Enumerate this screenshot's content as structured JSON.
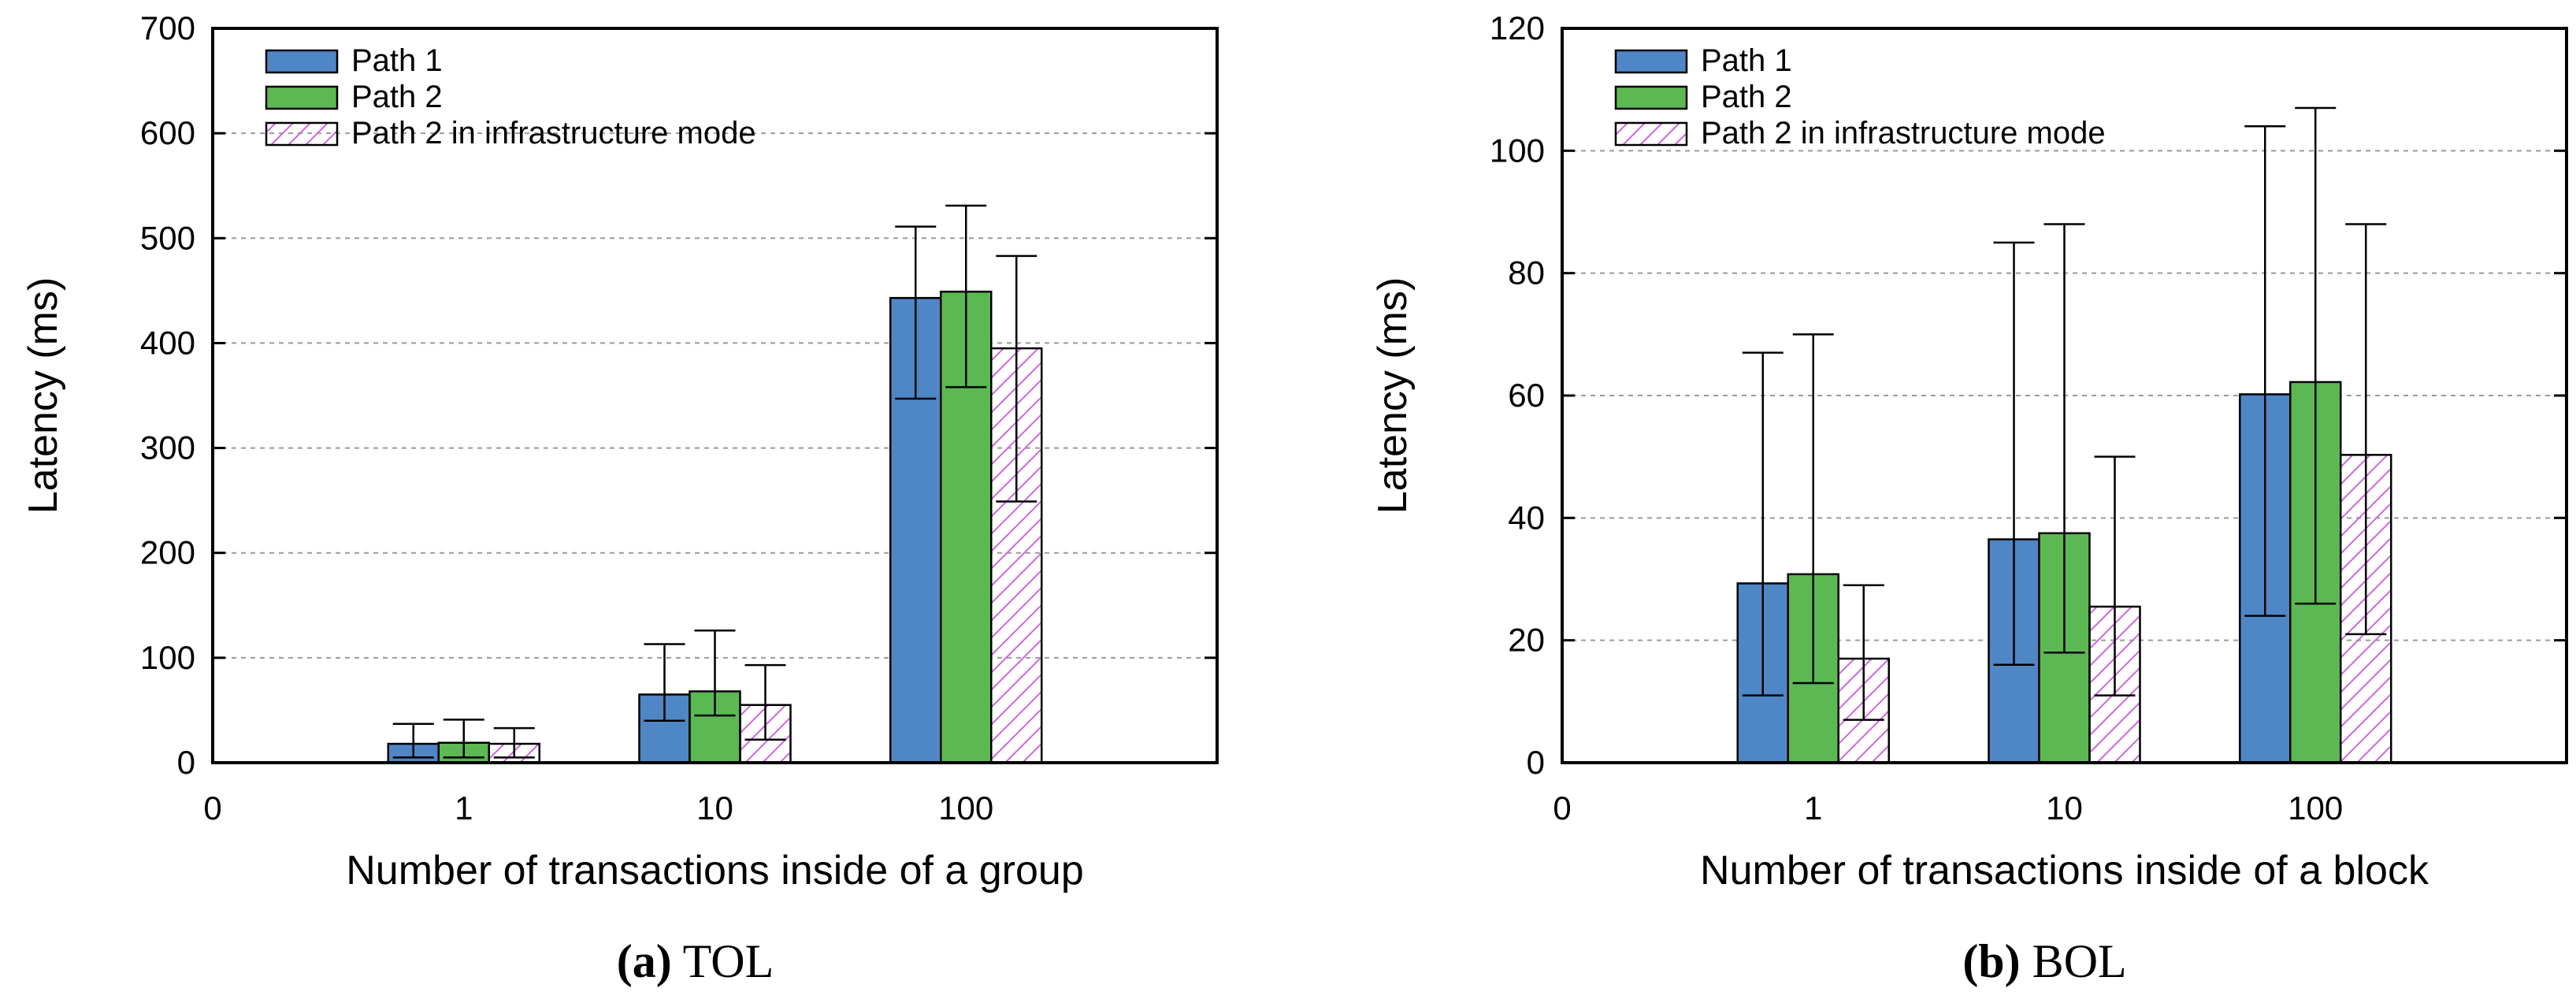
{
  "chart_data": [
    {
      "type": "bar",
      "panel_letter": "(a)",
      "panel_title": "TOL",
      "xlabel": "Number of transactions inside of a group",
      "ylabel": "Latency (ms)",
      "ylim": [
        0,
        700
      ],
      "yticks": [
        0,
        100,
        200,
        300,
        400,
        500,
        600,
        700
      ],
      "grid": true,
      "zero_tick": "0",
      "categories": [
        "1",
        "10",
        "100"
      ],
      "legend_position": "top-left",
      "series": [
        {
          "name": "Path 1",
          "style": "solid",
          "color": "#4f86c6",
          "values": [
            18,
            65,
            443
          ],
          "err_low": [
            5,
            40,
            347
          ],
          "err_high": [
            37,
            113,
            511
          ]
        },
        {
          "name": "Path 2",
          "style": "solid",
          "color": "#5cb853",
          "values": [
            19,
            68,
            449
          ],
          "err_low": [
            5,
            45,
            358
          ],
          "err_high": [
            41,
            126,
            531
          ]
        },
        {
          "name": "Path 2 in infrastructure mode",
          "style": "hatch",
          "color": "#cc66dd",
          "values": [
            18,
            55,
            395
          ],
          "err_low": [
            5,
            22,
            249
          ],
          "err_high": [
            33,
            93,
            483
          ]
        }
      ]
    },
    {
      "type": "bar",
      "panel_letter": "(b)",
      "panel_title": "BOL",
      "xlabel": "Number of transactions inside of a block",
      "ylabel": "Latency (ms)",
      "ylim": [
        0,
        120
      ],
      "yticks": [
        0,
        20,
        40,
        60,
        80,
        100,
        120
      ],
      "grid": true,
      "zero_tick": "0",
      "categories": [
        "1",
        "10",
        "100"
      ],
      "legend_position": "top-left",
      "series": [
        {
          "name": "Path 1",
          "style": "solid",
          "color": "#4f86c6",
          "values": [
            29.3,
            36.5,
            60.2
          ],
          "err_low": [
            11,
            16,
            24
          ],
          "err_high": [
            67,
            85,
            104
          ]
        },
        {
          "name": "Path 2",
          "style": "solid",
          "color": "#5cb853",
          "values": [
            30.8,
            37.5,
            62.2
          ],
          "err_low": [
            13,
            18,
            26
          ],
          "err_high": [
            70,
            88,
            107
          ]
        },
        {
          "name": "Path 2 in infrastructure mode",
          "style": "hatch",
          "color": "#cc66dd",
          "values": [
            17,
            25.5,
            50.3
          ],
          "err_low": [
            7,
            11,
            21
          ],
          "err_high": [
            29,
            50,
            88
          ]
        }
      ]
    }
  ]
}
